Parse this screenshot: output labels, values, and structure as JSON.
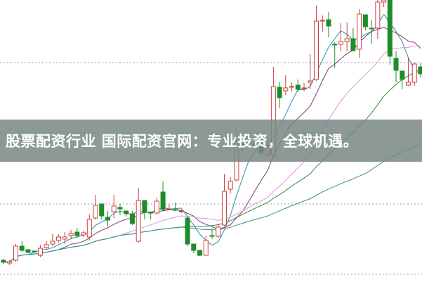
{
  "overlay": {
    "caption": "股票配资行业 国际配资官网：专业投资，全球机遇。"
  },
  "chart_data": {
    "type": "candlestick",
    "title": "",
    "xlabel": "",
    "ylabel": "",
    "ylim": [
      0,
      40
    ],
    "grid": "horizontal dotted",
    "up_color": "#d23c3c",
    "down_color": "#1e8c28",
    "fields": [
      "open",
      "close",
      "high",
      "low"
    ],
    "candles": [
      [
        3.0,
        2.7,
        3.2,
        2.4
      ],
      [
        2.6,
        2.8,
        3.0,
        2.3
      ],
      [
        3.0,
        5.0,
        5.3,
        2.8
      ],
      [
        5.0,
        4.4,
        5.7,
        4.2
      ],
      [
        4.5,
        4.1,
        4.6,
        4.0
      ],
      [
        4.3,
        4.2,
        4.4,
        4.1
      ],
      [
        3.7,
        4.7,
        5.2,
        3.4
      ],
      [
        4.8,
        5.2,
        5.7,
        4.5
      ],
      [
        5.3,
        5.7,
        6.7,
        5.0
      ],
      [
        5.8,
        6.3,
        6.7,
        5.5
      ],
      [
        6.0,
        6.3,
        7.0,
        5.3
      ],
      [
        6.5,
        6.8,
        7.3,
        6.0
      ],
      [
        7.0,
        6.5,
        7.6,
        6.2
      ],
      [
        6.6,
        6.9,
        7.2,
        6.3
      ],
      [
        6.3,
        8.8,
        9.5,
        5.8
      ],
      [
        9.0,
        10.8,
        12.3,
        8.8
      ],
      [
        11.0,
        9.3,
        11.0,
        8.8
      ],
      [
        9.1,
        8.7,
        10.0,
        7.8
      ],
      [
        9.9,
        10.7,
        12.3,
        9.0
      ],
      [
        10.5,
        10.3,
        11.0,
        9.4
      ],
      [
        10.0,
        9.6,
        10.0,
        9.2
      ],
      [
        9.6,
        8.2,
        10.0,
        8.0
      ],
      [
        5.7,
        11.5,
        13.3,
        5.5
      ],
      [
        11.5,
        9.8,
        11.5,
        8.8
      ],
      [
        9.8,
        9.7,
        9.9,
        8.8
      ],
      [
        9.7,
        11.4,
        11.9,
        9.5
      ],
      [
        12.7,
        10.2,
        14.2,
        10.0
      ],
      [
        10.2,
        10.3,
        10.9,
        10.1
      ],
      [
        10.2,
        10.1,
        11.2,
        10.0
      ],
      [
        9.9,
        10.0,
        10.2,
        9.7
      ],
      [
        9.0,
        5.3,
        9.3,
        5.0
      ],
      [
        5.3,
        4.4,
        5.3,
        4.0
      ],
      [
        4.4,
        3.7,
        4.4,
        3.6
      ],
      [
        3.7,
        5.8,
        6.5,
        3.7
      ],
      [
        6.5,
        6.4,
        7.5,
        6.0
      ],
      [
        6.4,
        7.7,
        8.2,
        6.2
      ],
      [
        8.0,
        12.8,
        15.3,
        7.8
      ],
      [
        13.1,
        14.2,
        14.8,
        12.5
      ],
      [
        14.4,
        20.0,
        22.0,
        14.2
      ],
      [
        20.0,
        19.2,
        20.5,
        18.5
      ],
      [
        19.8,
        19.6,
        20.0,
        19.4
      ],
      [
        19.5,
        19.4,
        20.0,
        19.0
      ],
      [
        19.5,
        18.3,
        19.8,
        17.8
      ],
      [
        18.0,
        19.0,
        20.5,
        17.5
      ],
      [
        18.0,
        27.7,
        30.5,
        17.5
      ],
      [
        27.6,
        26.1,
        28.3,
        24.7
      ],
      [
        27.1,
        27.5,
        29.3,
        26.5
      ],
      [
        27.6,
        27.7,
        28.3,
        27.0
      ],
      [
        27.9,
        27.3,
        28.7,
        26.9
      ],
      [
        27.4,
        27.5,
        28.2,
        27.0
      ],
      [
        28.3,
        28.5,
        32.3,
        27.3
      ],
      [
        28.7,
        37.0,
        39.2,
        28.5
      ],
      [
        37.0,
        37.1,
        37.8,
        35.5
      ],
      [
        37.2,
        36.3,
        38.3,
        34.7
      ],
      [
        33.7,
        33.6,
        34.0,
        30.3
      ],
      [
        33.7,
        34.1,
        36.7,
        32.7
      ],
      [
        34.1,
        34.5,
        36.8,
        32.7
      ],
      [
        34.5,
        32.8,
        36.0,
        32.7
      ],
      [
        33.0,
        38.0,
        38.7,
        31.8
      ],
      [
        37.9,
        36.2,
        37.9,
        35.7
      ],
      [
        36.0,
        35.9,
        37.2,
        33.8
      ],
      [
        36.0,
        39.7,
        40.0,
        34.5
      ],
      [
        39.7,
        40.0,
        40.0,
        39.0
      ],
      [
        40.0,
        32.0,
        40.0,
        30.8
      ],
      [
        31.7,
        30.0,
        32.7,
        28.3
      ],
      [
        29.9,
        28.7,
        29.9,
        27.3
      ],
      [
        27.9,
        28.3,
        31.8,
        27.8
      ],
      [
        28.3,
        30.9,
        31.0,
        27.8
      ],
      [
        30.5,
        29.5,
        31.0,
        29.0
      ]
    ],
    "moving_averages": [
      {
        "period": 5,
        "color": "#2a8fa8"
      },
      {
        "period": 10,
        "color": "#7a3a6a"
      },
      {
        "period": 20,
        "color": "#e890e0"
      },
      {
        "period": 30,
        "color": "#2e8a3a"
      },
      {
        "period": 60,
        "color": "#3a8f9a"
      }
    ]
  }
}
